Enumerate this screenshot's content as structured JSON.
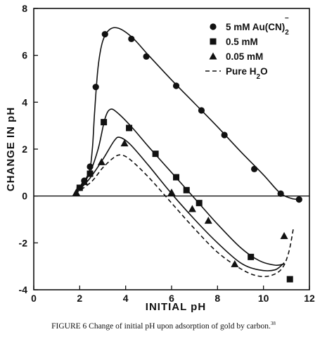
{
  "caption": {
    "text": "FIGURE 6   Change of initial pH upon adsorption of gold by carbon.",
    "ref": "38"
  },
  "chart_data": {
    "type": "line",
    "title": "",
    "xlabel": "INITIAL pH",
    "ylabel": "CHANGE IN pH",
    "xlim": [
      0,
      12
    ],
    "ylim": [
      -4,
      8
    ],
    "xticks": [
      "0",
      "2",
      "4",
      "6",
      "8",
      "10",
      "12"
    ],
    "yticks": [
      "-4",
      "-2",
      "0",
      "2",
      "4",
      "6",
      "8"
    ],
    "zero_line": true,
    "legend_position": "top-right",
    "series": [
      {
        "name": "5 mM Au(CN)2-",
        "legend_label": "5 mM Au(CN)",
        "legend_sub": "2",
        "legend_sup": "−",
        "marker": "circle",
        "points": [
          [
            2.0,
            0.35
          ],
          [
            2.2,
            0.65
          ],
          [
            2.45,
            1.25
          ],
          [
            2.7,
            4.65
          ],
          [
            3.1,
            6.9
          ],
          [
            4.25,
            6.7
          ],
          [
            4.9,
            5.95
          ],
          [
            6.2,
            4.7
          ],
          [
            7.3,
            3.65
          ],
          [
            8.3,
            2.6
          ],
          [
            9.6,
            1.15
          ],
          [
            10.75,
            0.1
          ],
          [
            11.55,
            -0.15
          ]
        ],
        "curve": [
          [
            2.0,
            0.35
          ],
          [
            2.4,
            1.0
          ],
          [
            2.55,
            2.0
          ],
          [
            2.65,
            3.6
          ],
          [
            2.8,
            5.5
          ],
          [
            3.0,
            6.6
          ],
          [
            3.3,
            7.1
          ],
          [
            3.7,
            7.15
          ],
          [
            4.3,
            6.75
          ],
          [
            5.0,
            6.0
          ],
          [
            6.0,
            4.95
          ],
          [
            7.0,
            3.95
          ],
          [
            8.0,
            2.95
          ],
          [
            9.0,
            1.9
          ],
          [
            10.0,
            0.9
          ],
          [
            10.7,
            0.15
          ],
          [
            11.2,
            -0.1
          ],
          [
            11.6,
            -0.15
          ]
        ]
      },
      {
        "name": "0.5 mM",
        "legend_label": "0.5 mM",
        "marker": "square",
        "points": [
          [
            2.0,
            0.35
          ],
          [
            2.45,
            0.95
          ],
          [
            3.05,
            3.15
          ],
          [
            4.15,
            2.9
          ],
          [
            5.3,
            1.8
          ],
          [
            6.2,
            0.8
          ],
          [
            6.65,
            0.25
          ],
          [
            7.2,
            -0.3
          ],
          [
            9.45,
            -2.6
          ],
          [
            11.15,
            -3.55
          ]
        ],
        "curve": [
          [
            1.9,
            0.2
          ],
          [
            2.4,
            0.9
          ],
          [
            2.8,
            2.0
          ],
          [
            3.1,
            3.3
          ],
          [
            3.35,
            3.7
          ],
          [
            3.7,
            3.5
          ],
          [
            4.3,
            2.9
          ],
          [
            5.0,
            2.1
          ],
          [
            6.0,
            1.0
          ],
          [
            7.0,
            -0.1
          ],
          [
            8.0,
            -1.2
          ],
          [
            9.0,
            -2.2
          ],
          [
            9.8,
            -2.75
          ],
          [
            10.5,
            -2.95
          ],
          [
            10.9,
            -2.9
          ]
        ]
      },
      {
        "name": "0.05 mM",
        "legend_label": "0.05 mM",
        "marker": "triangle",
        "points": [
          [
            1.85,
            0.15
          ],
          [
            2.2,
            0.6
          ],
          [
            2.95,
            1.45
          ],
          [
            3.95,
            2.25
          ],
          [
            6.0,
            0.15
          ],
          [
            6.9,
            -0.55
          ],
          [
            7.6,
            -1.05
          ],
          [
            8.75,
            -2.9
          ],
          [
            10.9,
            -1.7
          ]
        ],
        "curve": [
          [
            1.8,
            0.1
          ],
          [
            2.4,
            0.7
          ],
          [
            3.0,
            1.55
          ],
          [
            3.5,
            2.35
          ],
          [
            3.75,
            2.5
          ],
          [
            4.2,
            2.2
          ],
          [
            5.0,
            1.3
          ],
          [
            6.0,
            0.1
          ],
          [
            7.0,
            -1.0
          ],
          [
            8.0,
            -2.0
          ],
          [
            9.0,
            -2.85
          ],
          [
            9.8,
            -3.15
          ],
          [
            10.5,
            -3.15
          ],
          [
            10.9,
            -2.85
          ]
        ]
      },
      {
        "name": "Pure H2O",
        "legend_label": "Pure H",
        "legend_sub": "2",
        "legend_after": "O",
        "marker": "none",
        "dashed": true,
        "curve": [
          [
            1.8,
            0.1
          ],
          [
            2.5,
            0.6
          ],
          [
            3.0,
            1.2
          ],
          [
            3.5,
            1.65
          ],
          [
            3.8,
            1.75
          ],
          [
            4.2,
            1.55
          ],
          [
            5.0,
            0.8
          ],
          [
            6.0,
            -0.3
          ],
          [
            7.0,
            -1.4
          ],
          [
            8.0,
            -2.4
          ],
          [
            9.0,
            -3.1
          ],
          [
            9.7,
            -3.4
          ],
          [
            10.3,
            -3.4
          ],
          [
            10.8,
            -3.1
          ],
          [
            11.1,
            -2.4
          ],
          [
            11.3,
            -1.4
          ]
        ]
      }
    ]
  }
}
